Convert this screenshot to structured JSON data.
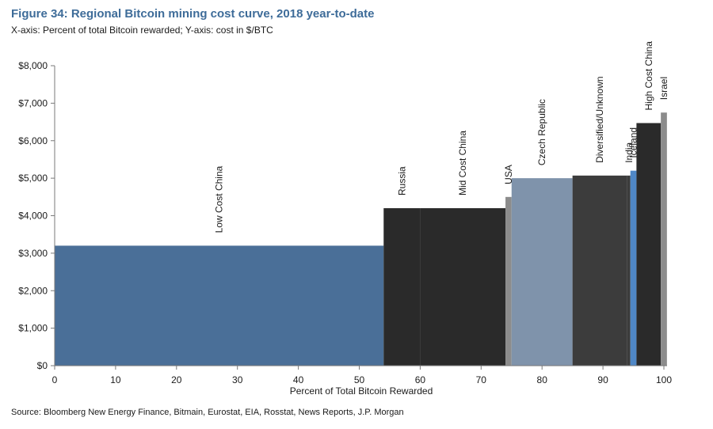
{
  "title": "Figure 34: Regional Bitcoin mining cost curve, 2018 year-to-date",
  "subtitle": "X-axis: Percent of total Bitcoin rewarded; Y-axis: cost in $/BTC",
  "source": "Source: Bloomberg New Energy Finance, Bitmain, Eurostat, EIA, Rosstat, News Reports, J.P. Morgan",
  "chart_data": {
    "type": "bar",
    "title": "Figure 34: Regional Bitcoin mining cost curve, 2018 year-to-date",
    "xlabel": "Percent of Total Bitcoin Rewarded",
    "ylabel": "",
    "xlim": [
      0,
      100
    ],
    "ylim": [
      0,
      8000
    ],
    "x_ticks": [
      "0",
      "10",
      "20",
      "30",
      "40",
      "50",
      "60",
      "70",
      "80",
      "90",
      "100"
    ],
    "y_ticks": [
      "$0",
      "$1,000",
      "$2,000",
      "$3,000",
      "$4,000",
      "$5,000",
      "$6,000",
      "$7,000",
      "$8,000"
    ],
    "grid": false,
    "legend": "none",
    "segments": [
      {
        "name": "Low Cost China",
        "x_start": 0,
        "x_end": 54,
        "value": 3200,
        "color": "#4a6f98"
      },
      {
        "name": "Russia",
        "x_start": 54,
        "x_end": 60,
        "value": 4200,
        "color": "#2a2a2a"
      },
      {
        "name": "Mid Cost China",
        "x_start": 60,
        "x_end": 74,
        "value": 4200,
        "color": "#2a2a2a"
      },
      {
        "name": "USA",
        "x_start": 74,
        "x_end": 75,
        "value": 4500,
        "color": "#8c8c8c"
      },
      {
        "name": "Czech Republic",
        "x_start": 75,
        "x_end": 85,
        "value": 5000,
        "color": "#7f93ab"
      },
      {
        "name": "Diversified/Unknown",
        "x_start": 85,
        "x_end": 94,
        "value": 5070,
        "color": "#3c3c3c"
      },
      {
        "name": "India",
        "x_start": 94,
        "x_end": 94.5,
        "value": 5070,
        "color": "#3c3c3c"
      },
      {
        "name": "Iceland",
        "x_start": 94.5,
        "x_end": 95.5,
        "value": 5200,
        "color": "#4f87c6"
      },
      {
        "name": "High Cost China",
        "x_start": 95.5,
        "x_end": 99.5,
        "value": 6470,
        "color": "#2a2a2a"
      },
      {
        "name": "Israel",
        "x_start": 99.5,
        "x_end": 100.5,
        "value": 6750,
        "color": "#8c8c8c"
      }
    ]
  }
}
